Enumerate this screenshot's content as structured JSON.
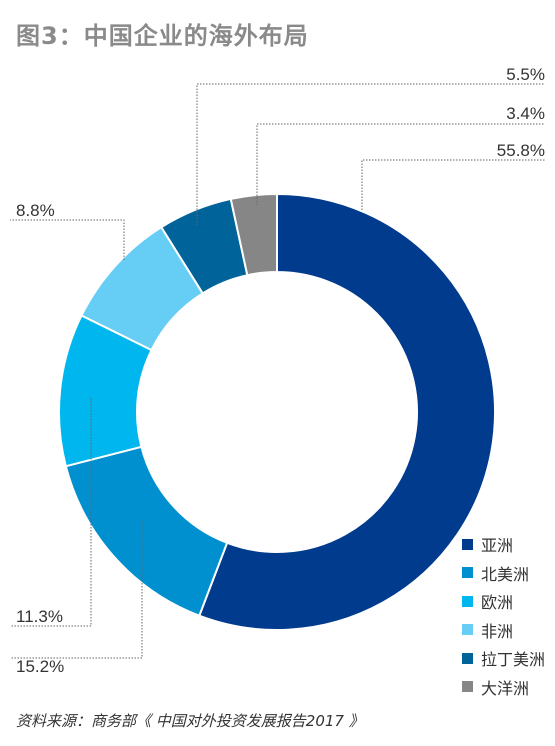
{
  "title": "图3：中国企业的海外布局",
  "source": "资料来源：商务部《 中国对外投资发展报告2017 》",
  "chart_data": {
    "type": "pie",
    "variant": "donut",
    "legend_position": "bottom-right",
    "series": [
      {
        "name": "亚洲",
        "value": 55.8,
        "label": "55.8%",
        "color": "#003b8e"
      },
      {
        "name": "北美洲",
        "value": 15.2,
        "label": "15.2%",
        "color": "#0090cf"
      },
      {
        "name": "欧洲",
        "value": 11.3,
        "label": "11.3%",
        "color": "#00b6ee"
      },
      {
        "name": "非洲",
        "value": 8.8,
        "label": "8.8%",
        "color": "#66cdf4"
      },
      {
        "name": "拉丁美洲",
        "value": 5.5,
        "label": "5.5%",
        "color": "#00639a"
      },
      {
        "name": "大洋洲",
        "value": 3.4,
        "label": "3.4%",
        "color": "#868686"
      }
    ]
  }
}
